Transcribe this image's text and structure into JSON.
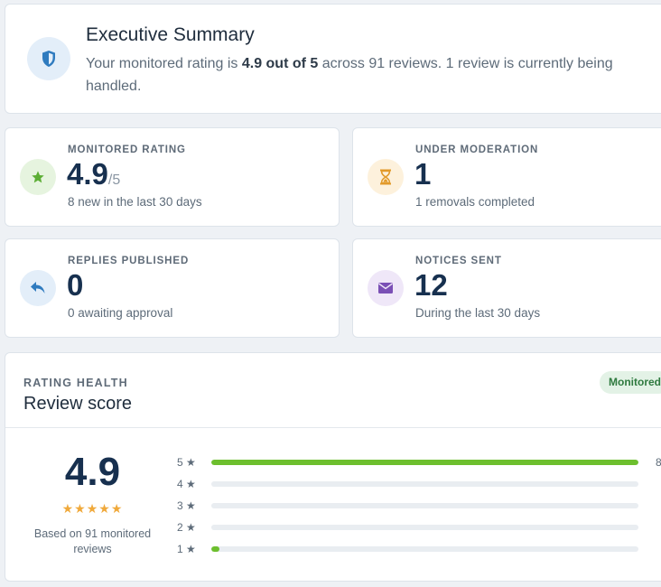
{
  "summary": {
    "title": "Executive Summary",
    "text_before": "Your monitored rating is ",
    "rating_bold": "4.9 out of 5",
    "text_after": " across 91 reviews. 1 review is currently being handled.",
    "icon": "shield-icon"
  },
  "stats": {
    "rating": {
      "label": "MONITORED RATING",
      "value": "4.9",
      "suffix": "/5",
      "sub": "8 new in the last 30 days",
      "icon": "star-icon",
      "icon_color": "#5cae35",
      "icon_bg": "#e6f4df"
    },
    "moderation": {
      "label": "UNDER MODERATION",
      "value": "1",
      "sub": "1 removals completed",
      "icon": "hourglass-icon",
      "icon_color": "#e29a2a",
      "icon_bg": "#fdf1dc"
    },
    "replies": {
      "label": "REPLIES PUBLISHED",
      "value": "0",
      "sub": "0 awaiting approval",
      "icon": "reply-icon",
      "icon_color": "#2f7bbf",
      "icon_bg": "#e3eef9"
    },
    "notices": {
      "label": "NOTICES SENT",
      "value": "12",
      "sub": "During the last 30 days",
      "icon": "envelope-icon",
      "icon_color": "#7a4fb5",
      "icon_bg": "#efe7f8"
    }
  },
  "health": {
    "label": "RATING HEALTH",
    "title": "Review score",
    "badge": "Monitored",
    "score": "4.9",
    "stars": "★★★★★",
    "based_on": "Based on 91 monitored reviews",
    "distribution": [
      {
        "label": "5 ★",
        "fraction": 1.0,
        "count": "8"
      },
      {
        "label": "4 ★",
        "fraction": 0.0,
        "count": ""
      },
      {
        "label": "3 ★",
        "fraction": 0.0,
        "count": ""
      },
      {
        "label": "2 ★",
        "fraction": 0.0,
        "count": ""
      },
      {
        "label": "1 ★",
        "fraction": 0.02,
        "count": ""
      }
    ]
  },
  "colors": {
    "accent_green": "#6dbf2e",
    "star": "#f0a93b",
    "navy": "#17304f"
  }
}
